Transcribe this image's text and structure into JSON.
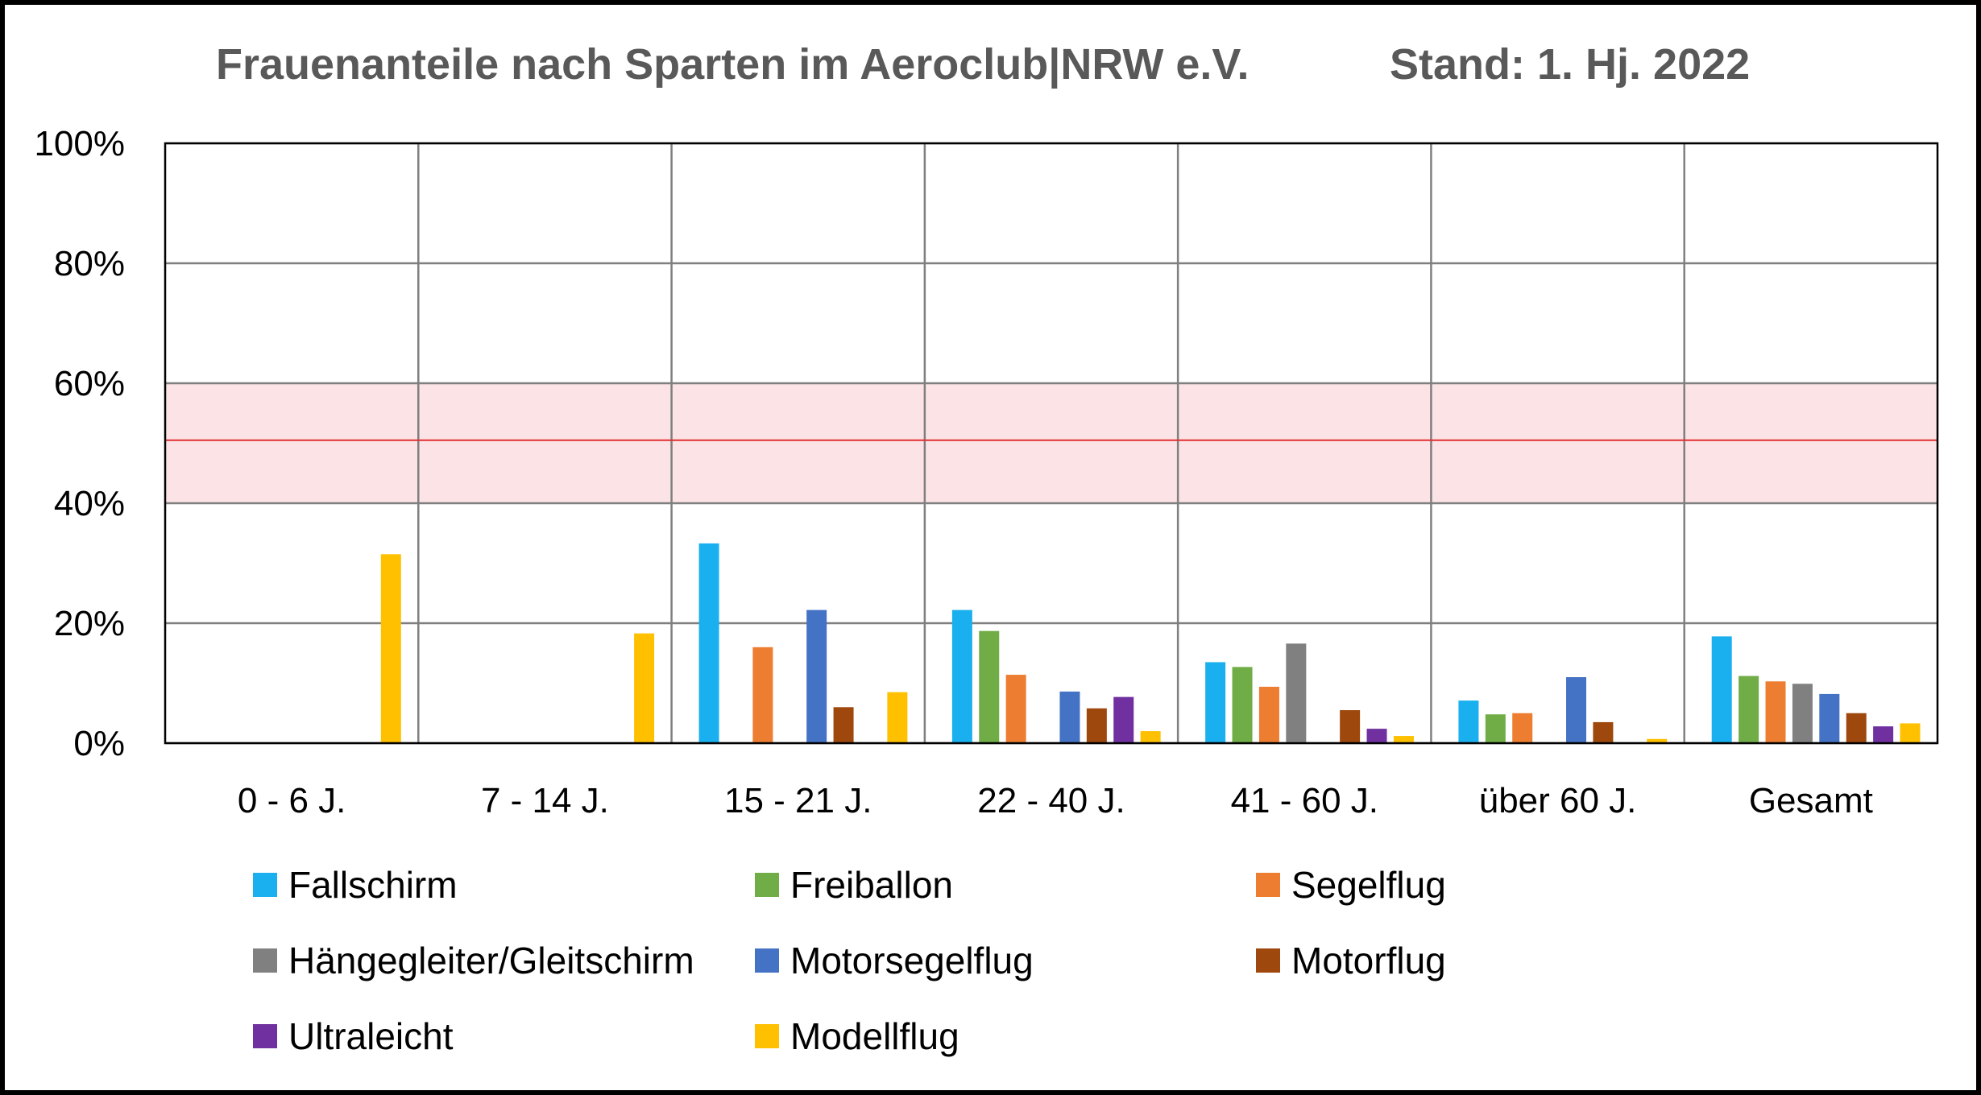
{
  "chart_data": {
    "type": "bar",
    "title": "Frauenanteile nach Sparten im Aeroclub|NRW e.V.",
    "subtitle": "Stand: 1. Hj. 2022",
    "xlabel": "",
    "ylabel": "",
    "ylim": [
      0,
      100
    ],
    "y_ticks": [
      "0%",
      "20%",
      "40%",
      "60%",
      "80%",
      "100%"
    ],
    "y_tick_values": [
      0,
      20,
      40,
      60,
      80,
      100
    ],
    "grid": true,
    "legend_position": "bottom",
    "categories": [
      "0 - 6 J.",
      "7 - 14 J.",
      "15 - 21 J.",
      "22 - 40 J.",
      "41 - 60 J.",
      "über 60 J.",
      "Gesamt"
    ],
    "reference_band": {
      "from": 40,
      "to": 60,
      "color": "#fce4e6"
    },
    "reference_line": {
      "value": 50.5,
      "color": "#e03030"
    },
    "series": [
      {
        "name": "Fallschirm",
        "color": "#1ab0ef",
        "values": [
          0,
          0,
          33.3,
          22.2,
          13.5,
          7.1,
          17.8
        ]
      },
      {
        "name": "Freiballon",
        "color": "#70ad47",
        "values": [
          0,
          0,
          0,
          18.7,
          12.7,
          4.8,
          11.2
        ]
      },
      {
        "name": "Segelflug",
        "color": "#ed7d31",
        "values": [
          0,
          0,
          16.0,
          11.4,
          9.4,
          5.0,
          10.3
        ]
      },
      {
        "name": "Hängegleiter/Gleitschirm",
        "color": "#808080",
        "values": [
          0,
          0,
          0,
          0,
          16.6,
          0,
          9.9
        ]
      },
      {
        "name": "Motorsegelflug",
        "color": "#4472c4",
        "values": [
          0,
          0,
          22.2,
          8.6,
          0,
          11.0,
          8.2
        ]
      },
      {
        "name": "Motorflug",
        "color": "#9e480e",
        "values": [
          0,
          0,
          6.0,
          5.8,
          5.5,
          3.5,
          5.0
        ]
      },
      {
        "name": "Ultraleicht",
        "color": "#7030a0",
        "values": [
          0,
          0,
          0,
          7.7,
          2.4,
          0,
          2.8
        ]
      },
      {
        "name": "Modellflug",
        "color": "#ffc000",
        "values": [
          31.5,
          18.3,
          8.5,
          2.0,
          1.2,
          0.7,
          3.3
        ]
      }
    ]
  }
}
